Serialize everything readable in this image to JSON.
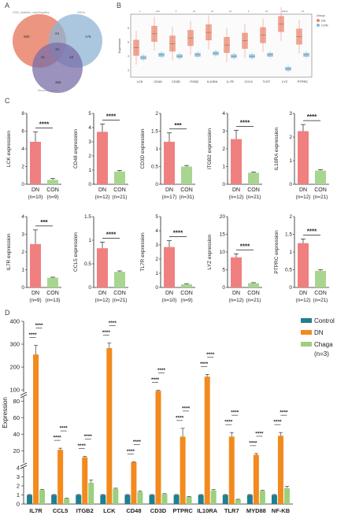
{
  "panels": {
    "a_letter": "A",
    "b_letter": "B",
    "c_letter": "C",
    "d_letter": "D"
  },
  "venn": {
    "set_labels": [
      "GSE_diabetic_nephropathy",
      "DEGs",
      "Immune_genes"
    ],
    "regions": {
      "a_only": "680",
      "b_only": "176",
      "c_only": "366",
      "ab": "24",
      "ac": "41",
      "bc": "18",
      "abc": "10"
    },
    "colors": [
      "#e9836a",
      "#8fb4d6",
      "#7a6da8"
    ]
  },
  "chart_data": [
    {
      "id": "B",
      "type": "box",
      "categories": [
        "LCK",
        "CD48",
        "CD3D",
        "ITGB2",
        "IL10RA",
        "IL7R",
        "CCL5",
        "TLR7",
        "LYZ",
        "PTPRC"
      ],
      "significance": [
        "*",
        "***",
        "*",
        "**",
        "**",
        "**",
        "*",
        "**",
        "*****",
        "**"
      ],
      "ylabel": "Expression",
      "legend_title": "Group",
      "legend": [
        {
          "name": "DN",
          "color": "#e9836a"
        },
        {
          "name": "CON",
          "color": "#7fb9d8"
        }
      ],
      "series": [
        {
          "name": "DN",
          "medians": [
            4.6,
            5.6,
            4.9,
            5.3,
            5.7,
            4.8,
            5.1,
            5.5,
            6.3,
            5.4
          ]
        },
        {
          "name": "CON",
          "medians": [
            3.9,
            4.1,
            4.0,
            4.1,
            4.2,
            4.0,
            4.0,
            4.1,
            3.1,
            4.1
          ]
        }
      ]
    },
    {
      "id": "C",
      "type": "bar",
      "panels": [
        {
          "gene": "LCK",
          "ylabel": "LCK expression",
          "yticks": [
            0,
            2,
            4,
            6,
            8
          ],
          "ymax": 8,
          "groups": [
            "DN",
            "CON"
          ],
          "n": [
            "(n=10)",
            "(n=9)"
          ],
          "values": [
            4.8,
            0.5
          ],
          "err": [
            1.1,
            0.15
          ],
          "sig": "****"
        },
        {
          "gene": "CD48",
          "ylabel": "CD48 expression",
          "yticks": [
            0,
            1,
            2,
            3,
            4,
            5
          ],
          "ymax": 5,
          "groups": [
            "DN",
            "CON"
          ],
          "n": [
            "(n=12)",
            "(n=21)"
          ],
          "values": [
            3.7,
            0.9
          ],
          "err": [
            0.55,
            0.08
          ],
          "sig": "****"
        },
        {
          "gene": "CD3D",
          "ylabel": "CD3D expression",
          "yticks": [
            0,
            0.5,
            1.0,
            1.5,
            2.0
          ],
          "ymax": 2.0,
          "groups": [
            "DN",
            "CON"
          ],
          "n": [
            "(n=17)",
            "(n=31)"
          ],
          "values": [
            1.2,
            0.5
          ],
          "err": [
            0.25,
            0.03
          ],
          "sig": "***"
        },
        {
          "gene": "ITGB2",
          "ylabel": "ITGB2 expression",
          "yticks": [
            0,
            1,
            2,
            3,
            4
          ],
          "ymax": 4,
          "groups": [
            "DN",
            "CON"
          ],
          "n": [
            "(n=12)",
            "(n=21)"
          ],
          "values": [
            2.55,
            0.65
          ],
          "err": [
            0.5,
            0.04
          ],
          "sig": "****"
        },
        {
          "gene": "IL10RA",
          "ylabel": "IL10RA expression",
          "yticks": [
            0,
            1,
            2,
            3
          ],
          "ymax": 3,
          "groups": [
            "DN",
            "CON"
          ],
          "n": [
            "(n=12)",
            "(n=21)"
          ],
          "values": [
            2.25,
            0.58
          ],
          "err": [
            0.28,
            0.04
          ],
          "sig": "****"
        },
        {
          "gene": "IL7R",
          "ylabel": "IL7R expression",
          "yticks": [
            0,
            1,
            2,
            3,
            4
          ],
          "ymax": 4,
          "groups": [
            "DN",
            "CON"
          ],
          "n": [
            "(n=9)",
            "(n=13)"
          ],
          "values": [
            2.45,
            0.55
          ],
          "err": [
            0.8,
            0.03
          ],
          "sig": "***"
        },
        {
          "gene": "CCL5",
          "ylabel": "CCL5 expression",
          "yticks": [
            0,
            0.5,
            1.0,
            1.5
          ],
          "ymax": 1.5,
          "groups": [
            "DN",
            "CON"
          ],
          "n": [
            "(n=12)",
            "(n=21)"
          ],
          "values": [
            0.83,
            0.33
          ],
          "err": [
            0.13,
            0.02
          ],
          "sig": "****"
        },
        {
          "gene": "TL7R",
          "ylabel": "TL7R expression",
          "yticks": [
            0,
            1,
            2,
            3,
            4,
            5
          ],
          "ymax": 5,
          "groups": [
            "DN",
            "CON"
          ],
          "n": [
            "(n=10)",
            "(n=9)"
          ],
          "values": [
            2.85,
            0.22
          ],
          "err": [
            0.45,
            0.05
          ],
          "sig": "****"
        },
        {
          "gene": "LYZ",
          "ylabel": "LYZ expression",
          "yticks": [
            0,
            5,
            10,
            15,
            20
          ],
          "ymax": 20,
          "groups": [
            "DN",
            "CON"
          ],
          "n": [
            "(n=12)",
            "(n=21)"
          ],
          "values": [
            8.5,
            1.2
          ],
          "err": [
            1.0,
            0.15
          ],
          "sig": "****"
        },
        {
          "gene": "PTPRC",
          "ylabel": "PTPRC expression",
          "yticks": [
            0,
            0.5,
            1.0,
            1.5,
            2.0
          ],
          "ymax": 2.0,
          "groups": [
            "DN",
            "CON"
          ],
          "n": [
            "(n=12)",
            "(n=21)"
          ],
          "values": [
            1.25,
            0.47
          ],
          "err": [
            0.12,
            0.03
          ],
          "sig": "****"
        }
      ]
    },
    {
      "id": "D",
      "type": "bar",
      "categories": [
        "IL7R",
        "CCL5",
        "ITGB2",
        "LCK",
        "CD48",
        "CD3D",
        "PTPRC",
        "IL10RA",
        "TLR7",
        "MYD88",
        "NF-KB"
      ],
      "ylabel": "Expression",
      "legend_note": "(n=3)",
      "series": [
        {
          "name": "Control",
          "color": "#1f7f91",
          "values": [
            1,
            1,
            1,
            1,
            1,
            1,
            1,
            1,
            1,
            1,
            1
          ],
          "err": [
            0.05,
            0.05,
            0.05,
            0.05,
            0.05,
            0.05,
            0.05,
            0.05,
            0.05,
            0.05,
            0.05
          ]
        },
        {
          "name": "DN",
          "color": "#f28a1e",
          "values": [
            255,
            21,
            12,
            283,
            6,
            96,
            37,
            158,
            37,
            15,
            38
          ],
          "err": [
            40,
            2,
            1,
            22,
            0.5,
            3,
            10,
            10,
            5,
            1.5,
            4
          ]
        },
        {
          "name": "Chaga",
          "color": "#9ccf7e",
          "values": [
            1.55,
            0.6,
            2.35,
            1.7,
            1.35,
            1.1,
            0.8,
            1.5,
            0.5,
            1.45,
            1.75
          ],
          "err": [
            0.08,
            0.04,
            0.3,
            0.05,
            0.1,
            0.05,
            0.04,
            0.1,
            0.03,
            0.06,
            0.2
          ]
        }
      ],
      "sig": [
        "****",
        "****"
      ],
      "axis_segments": [
        {
          "ticks": [
            0,
            1,
            2,
            3,
            4
          ]
        },
        {
          "ticks": [
            20,
            40,
            60,
            80
          ]
        },
        {
          "ticks": [
            100,
            200,
            300,
            400
          ]
        }
      ]
    }
  ]
}
